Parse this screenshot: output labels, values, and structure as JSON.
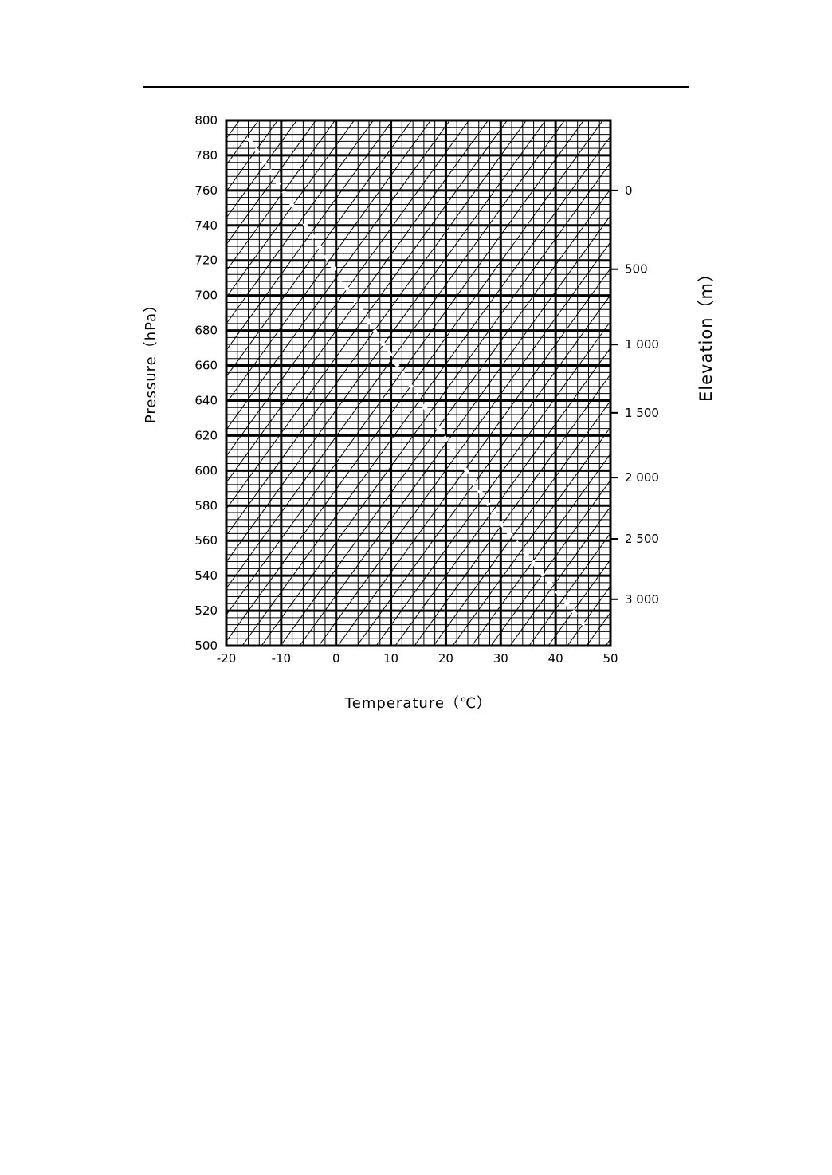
{
  "chart_data": {
    "type": "line",
    "xlabel": "Temperature（℃）",
    "ylabel": "Pressure（hPa）",
    "y2label": "Elevation（m）",
    "xlim": [
      -20,
      50
    ],
    "ylim": [
      500,
      800
    ],
    "x_ticks": [
      "-20",
      "-10",
      "0",
      "10",
      "20",
      "30",
      "40",
      "50"
    ],
    "x_tick_values": [
      -20,
      -10,
      0,
      10,
      20,
      30,
      40,
      50
    ],
    "y_ticks": [
      "800",
      "780",
      "760",
      "740",
      "720",
      "700",
      "680",
      "660",
      "640",
      "620",
      "600",
      "580",
      "560",
      "540",
      "520",
      "500"
    ],
    "y_tick_values": [
      800,
      780,
      760,
      740,
      720,
      700,
      680,
      660,
      640,
      620,
      600,
      580,
      560,
      540,
      520,
      500
    ],
    "elevation_ticks": [
      {
        "label": "0",
        "pressure": 760
      },
      {
        "label": "500",
        "pressure": 715
      },
      {
        "label": "1 000",
        "pressure": 672
      },
      {
        "label": "1 500",
        "pressure": 633
      },
      {
        "label": "2 000",
        "pressure": 596
      },
      {
        "label": "2 500",
        "pressure": 561
      },
      {
        "label": "3 000",
        "pressure": 526.5
      }
    ],
    "grid": true,
    "grid_minor_x_step": 2,
    "grid_minor_y_step": 4,
    "grid_major_x_step": 10,
    "grid_major_y_step": 20,
    "diagonal_guides": true,
    "series": [
      {
        "style": "dashed-white",
        "x": [
          -16,
          30,
          46
        ],
        "y": [
          790,
          570,
          509
        ]
      }
    ]
  }
}
